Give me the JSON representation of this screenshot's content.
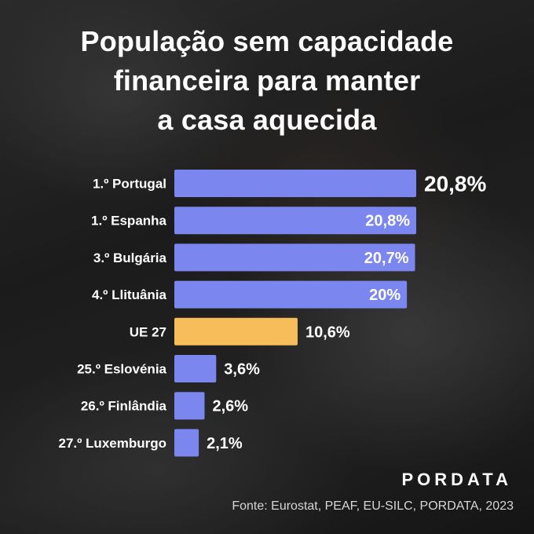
{
  "title": {
    "line1": "População sem capacidade",
    "line2": "financeira para manter",
    "line3": "a casa aquecida"
  },
  "chart_data": {
    "type": "bar",
    "orientation": "horizontal",
    "title": "População sem capacidade financeira para manter a casa aquecida",
    "categories": [
      "1.º Portugal",
      "1.º Espanha",
      "3.º Bulgária",
      "4.º Llituânia",
      "UE 27",
      "25.º Eslovénia",
      "26.º Finlândia",
      "27.º Luxemburgo"
    ],
    "values": [
      20.8,
      20.8,
      20.7,
      20,
      10.6,
      3.6,
      2.6,
      2.1
    ],
    "value_labels": [
      "20,8%",
      "20,8%",
      "20,7%",
      "20%",
      "10,6%",
      "3,6%",
      "2,6%",
      "2,1%"
    ],
    "unit": "%",
    "xlim": [
      0,
      20.8
    ],
    "highlight_category": "UE 27",
    "colors": {
      "bar": "#7b86ee",
      "highlight": "#f8bd5b",
      "label": "#ffffff"
    }
  },
  "brand": "PORDATA",
  "source": "Fonte: Eurostat, PEAF, EU-SILC, PORDATA, 2023"
}
